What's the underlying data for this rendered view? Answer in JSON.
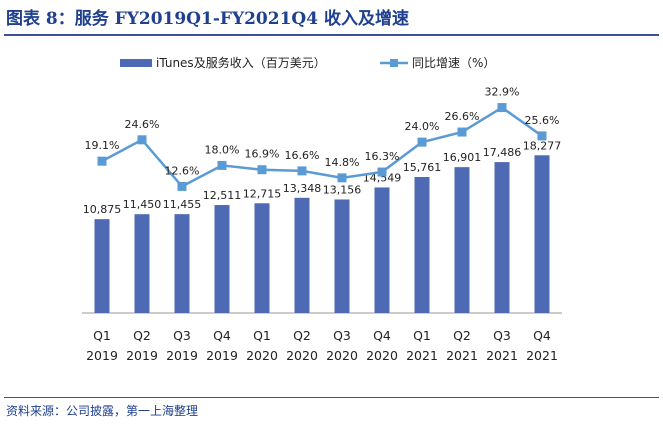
{
  "title": "图表 8：服务 FY2019Q1-FY2021Q4 收入及增速",
  "source": "资料来源：公司披露，第一上海整理",
  "colors": {
    "bar": "#4e6ab5",
    "line": "#5b9bd5",
    "title": "#1f3f8f",
    "rule": "#3b4f9e"
  },
  "chart_data": {
    "type": "bar",
    "title": "图表 8：服务 FY2019Q1-FY2021Q4 收入及增速",
    "categories": [
      "Q1 2019",
      "Q2 2019",
      "Q3 2019",
      "Q4 2019",
      "Q1 2020",
      "Q2 2020",
      "Q3 2020",
      "Q4 2020",
      "Q1 2021",
      "Q2 2021",
      "Q3 2021",
      "Q4 2021"
    ],
    "quarters": [
      "Q1",
      "Q2",
      "Q3",
      "Q4",
      "Q1",
      "Q2",
      "Q3",
      "Q4",
      "Q1",
      "Q2",
      "Q3",
      "Q4"
    ],
    "years": [
      "2019",
      "2019",
      "2019",
      "2019",
      "2020",
      "2020",
      "2020",
      "2020",
      "2021",
      "2021",
      "2021",
      "2021"
    ],
    "legend_position": "top",
    "series": [
      {
        "name": "iTunes及服务收入（百万美元）",
        "type": "bar",
        "axis": "left",
        "values": [
          10875,
          11450,
          11455,
          12511,
          12715,
          13348,
          13156,
          14549,
          15761,
          16901,
          17486,
          18277
        ],
        "labels": [
          "10,875",
          "11,450",
          "11,455",
          "12,511",
          "12,715",
          "13,348",
          "13,156",
          "14,549",
          "15,761",
          "16,901",
          "17,486",
          "18,277"
        ]
      },
      {
        "name": "同比增速（%）",
        "type": "line",
        "axis": "right",
        "values": [
          19.1,
          24.6,
          12.6,
          18.0,
          16.9,
          16.6,
          14.8,
          16.3,
          24.0,
          26.6,
          32.9,
          25.6
        ],
        "labels": [
          "19.1%",
          "24.6%",
          "12.6%",
          "18.0%",
          "16.9%",
          "16.6%",
          "14.8%",
          "16.3%",
          "24.0%",
          "26.6%",
          "32.9%",
          "25.6%"
        ]
      }
    ],
    "ylim_left": [
      0,
      27000
    ],
    "ylim_right": [
      -20,
      40
    ]
  }
}
